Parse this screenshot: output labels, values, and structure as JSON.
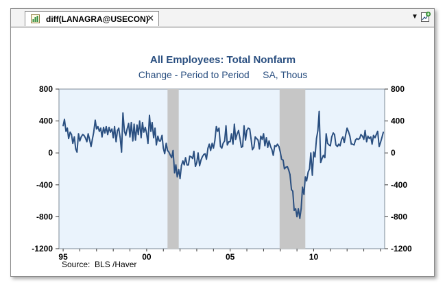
{
  "tab": {
    "label": "diff(LANAGRA@USECON)",
    "close_glyph": "✕",
    "icon": "chart-icon"
  },
  "toolbar": {
    "menu_glyph": "▼",
    "new_chart_icon": "new-chart-icon"
  },
  "colors": {
    "series": "#2a4f80",
    "title": "#2a4f80",
    "recession": "#c6c6c6",
    "plot_bg": "#eaf3fc"
  },
  "chart_data": {
    "type": "line",
    "title": "All Employees: Total Nonfarm",
    "subtitle": "Change - Period to Period     SA, Thous",
    "source": "Source:  BLS /Haver",
    "y_ticks": [
      800,
      400,
      0,
      -400,
      -800,
      -1200
    ],
    "y_tick_labels": [
      "800",
      "400",
      "0",
      "-400",
      "-800",
      "-1200"
    ],
    "ylim": [
      -1200,
      800
    ],
    "xlim": [
      1994.75,
      2014.25
    ],
    "x_ticks": [
      1995,
      2000,
      2005,
      2010
    ],
    "x_tick_labels": [
      "95",
      "00",
      "05",
      "10"
    ],
    "recessions": [
      [
        2001.25,
        2001.92
      ],
      [
        2007.96,
        2009.5
      ]
    ],
    "grid": false,
    "series": [
      {
        "values": [
          [
            1995.0,
            340
          ],
          [
            1995.08,
            420
          ],
          [
            1995.17,
            270
          ],
          [
            1995.25,
            310
          ],
          [
            1995.33,
            180
          ],
          [
            1995.42,
            260
          ],
          [
            1995.5,
            230
          ],
          [
            1995.58,
            120
          ],
          [
            1995.67,
            200
          ],
          [
            1995.75,
            50
          ],
          [
            1995.83,
            10
          ],
          [
            1995.92,
            240
          ],
          [
            1996.0,
            150
          ],
          [
            1996.08,
            200
          ],
          [
            1996.17,
            230
          ],
          [
            1996.25,
            220
          ],
          [
            1996.33,
            190
          ],
          [
            1996.42,
            140
          ],
          [
            1996.5,
            240
          ],
          [
            1996.58,
            170
          ],
          [
            1996.67,
            80
          ],
          [
            1996.75,
            170
          ],
          [
            1996.83,
            260
          ],
          [
            1996.92,
            410
          ],
          [
            1997.0,
            300
          ],
          [
            1997.08,
            330
          ],
          [
            1997.17,
            270
          ],
          [
            1997.25,
            310
          ],
          [
            1997.33,
            200
          ],
          [
            1997.42,
            320
          ],
          [
            1997.5,
            250
          ],
          [
            1997.58,
            330
          ],
          [
            1997.67,
            230
          ],
          [
            1997.75,
            320
          ],
          [
            1997.83,
            260
          ],
          [
            1997.92,
            300
          ],
          [
            1998.0,
            190
          ],
          [
            1998.08,
            330
          ],
          [
            1998.17,
            140
          ],
          [
            1998.25,
            280
          ],
          [
            1998.33,
            310
          ],
          [
            1998.42,
            180
          ],
          [
            1998.5,
            10
          ],
          [
            1998.58,
            500
          ],
          [
            1998.67,
            270
          ],
          [
            1998.75,
            220
          ],
          [
            1998.83,
            300
          ],
          [
            1998.92,
            370
          ],
          [
            1999.0,
            200
          ],
          [
            1999.08,
            380
          ],
          [
            1999.17,
            150
          ],
          [
            1999.25,
            360
          ],
          [
            1999.33,
            160
          ],
          [
            1999.42,
            350
          ],
          [
            1999.5,
            230
          ],
          [
            1999.58,
            400
          ],
          [
            1999.67,
            190
          ],
          [
            1999.75,
            380
          ],
          [
            1999.83,
            260
          ],
          [
            1999.92,
            320
          ],
          [
            2000.0,
            240
          ],
          [
            2000.08,
            120
          ],
          [
            2000.17,
            470
          ],
          [
            2000.25,
            270
          ],
          [
            2000.33,
            380
          ],
          [
            2000.42,
            190
          ],
          [
            2000.5,
            310
          ],
          [
            2000.58,
            100
          ],
          [
            2000.67,
            210
          ],
          [
            2000.75,
            150
          ],
          [
            2000.83,
            150
          ],
          [
            2000.92,
            220
          ],
          [
            2001.0,
            60
          ],
          [
            2001.08,
            -10
          ],
          [
            2001.17,
            120
          ],
          [
            2001.25,
            30
          ],
          [
            2001.33,
            10
          ],
          [
            2001.42,
            -30
          ],
          [
            2001.5,
            -60
          ],
          [
            2001.58,
            30
          ],
          [
            2001.67,
            -250
          ],
          [
            2001.75,
            -150
          ],
          [
            2001.83,
            -300
          ],
          [
            2001.92,
            -210
          ],
          [
            2002.0,
            -320
          ],
          [
            2002.08,
            -160
          ],
          [
            2002.17,
            -100
          ],
          [
            2002.25,
            -150
          ],
          [
            2002.33,
            -60
          ],
          [
            2002.42,
            -150
          ],
          [
            2002.5,
            -150
          ],
          [
            2002.58,
            -40
          ],
          [
            2002.67,
            -50
          ],
          [
            2002.75,
            -70
          ],
          [
            2002.83,
            20
          ],
          [
            2002.92,
            -170
          ],
          [
            2003.0,
            -120
          ],
          [
            2003.08,
            0
          ],
          [
            2003.17,
            -160
          ],
          [
            2003.25,
            -90
          ],
          [
            2003.33,
            -50
          ],
          [
            2003.42,
            -20
          ],
          [
            2003.5,
            -10
          ],
          [
            2003.58,
            -80
          ],
          [
            2003.67,
            60
          ],
          [
            2003.75,
            110
          ],
          [
            2003.83,
            30
          ],
          [
            2003.92,
            120
          ],
          [
            2004.0,
            60
          ],
          [
            2004.08,
            150
          ],
          [
            2004.17,
            330
          ],
          [
            2004.25,
            270
          ],
          [
            2004.33,
            310
          ],
          [
            2004.42,
            80
          ],
          [
            2004.5,
            60
          ],
          [
            2004.58,
            120
          ],
          [
            2004.67,
            150
          ],
          [
            2004.75,
            340
          ],
          [
            2004.83,
            100
          ],
          [
            2004.92,
            140
          ],
          [
            2005.0,
            140
          ],
          [
            2005.08,
            240
          ],
          [
            2005.17,
            110
          ],
          [
            2005.25,
            360
          ],
          [
            2005.33,
            170
          ],
          [
            2005.42,
            240
          ],
          [
            2005.5,
            280
          ],
          [
            2005.58,
            190
          ],
          [
            2005.67,
            70
          ],
          [
            2005.75,
            80
          ],
          [
            2005.83,
            340
          ],
          [
            2005.92,
            160
          ],
          [
            2006.0,
            280
          ],
          [
            2006.08,
            310
          ],
          [
            2006.17,
            300
          ],
          [
            2006.25,
            180
          ],
          [
            2006.33,
            40
          ],
          [
            2006.42,
            70
          ],
          [
            2006.5,
            200
          ],
          [
            2006.58,
            180
          ],
          [
            2006.67,
            160
          ],
          [
            2006.75,
            50
          ],
          [
            2006.83,
            210
          ],
          [
            2006.92,
            170
          ],
          [
            2007.0,
            240
          ],
          [
            2007.08,
            90
          ],
          [
            2007.17,
            190
          ],
          [
            2007.25,
            70
          ],
          [
            2007.33,
            150
          ],
          [
            2007.42,
            80
          ],
          [
            2007.5,
            40
          ],
          [
            2007.58,
            -30
          ],
          [
            2007.67,
            90
          ],
          [
            2007.75,
            80
          ],
          [
            2007.83,
            110
          ],
          [
            2007.92,
            80
          ],
          [
            2008.0,
            10
          ],
          [
            2008.08,
            -80
          ],
          [
            2008.17,
            -90
          ],
          [
            2008.25,
            -200
          ],
          [
            2008.33,
            -180
          ],
          [
            2008.42,
            -170
          ],
          [
            2008.5,
            -210
          ],
          [
            2008.58,
            -270
          ],
          [
            2008.67,
            -460
          ],
          [
            2008.75,
            -480
          ],
          [
            2008.83,
            -720
          ],
          [
            2008.92,
            -700
          ],
          [
            2009.0,
            -800
          ],
          [
            2009.08,
            -700
          ],
          [
            2009.17,
            -820
          ],
          [
            2009.25,
            -700
          ],
          [
            2009.33,
            -430
          ],
          [
            2009.42,
            -520
          ],
          [
            2009.5,
            -300
          ],
          [
            2009.58,
            -350
          ],
          [
            2009.67,
            -240
          ],
          [
            2009.75,
            -200
          ],
          [
            2009.83,
            0
          ],
          [
            2009.92,
            -280
          ],
          [
            2010.0,
            10
          ],
          [
            2010.08,
            -50
          ],
          [
            2010.17,
            180
          ],
          [
            2010.25,
            280
          ],
          [
            2010.33,
            520
          ],
          [
            2010.42,
            -120
          ],
          [
            2010.5,
            -70
          ],
          [
            2010.58,
            -30
          ],
          [
            2010.67,
            -60
          ],
          [
            2010.75,
            240
          ],
          [
            2010.83,
            120
          ],
          [
            2010.92,
            100
          ],
          [
            2011.0,
            90
          ],
          [
            2011.08,
            200
          ],
          [
            2011.17,
            250
          ],
          [
            2011.25,
            230
          ],
          [
            2011.33,
            100
          ],
          [
            2011.42,
            80
          ],
          [
            2011.5,
            110
          ],
          [
            2011.58,
            90
          ],
          [
            2011.67,
            170
          ],
          [
            2011.75,
            200
          ],
          [
            2011.83,
            130
          ],
          [
            2011.92,
            230
          ],
          [
            2012.0,
            310
          ],
          [
            2012.08,
            270
          ],
          [
            2012.17,
            210
          ],
          [
            2012.25,
            110
          ],
          [
            2012.33,
            110
          ],
          [
            2012.42,
            100
          ],
          [
            2012.5,
            160
          ],
          [
            2012.58,
            180
          ],
          [
            2012.67,
            170
          ],
          [
            2012.75,
            180
          ],
          [
            2012.83,
            230
          ],
          [
            2012.92,
            210
          ],
          [
            2013.0,
            170
          ],
          [
            2013.08,
            280
          ],
          [
            2013.17,
            140
          ],
          [
            2013.25,
            210
          ],
          [
            2013.33,
            180
          ],
          [
            2013.42,
            200
          ],
          [
            2013.5,
            110
          ],
          [
            2013.58,
            220
          ],
          [
            2013.67,
            190
          ],
          [
            2013.75,
            230
          ],
          [
            2013.83,
            270
          ],
          [
            2013.92,
            80
          ],
          [
            2014.0,
            130
          ],
          [
            2014.08,
            190
          ],
          [
            2014.17,
            260
          ]
        ]
      }
    ]
  }
}
